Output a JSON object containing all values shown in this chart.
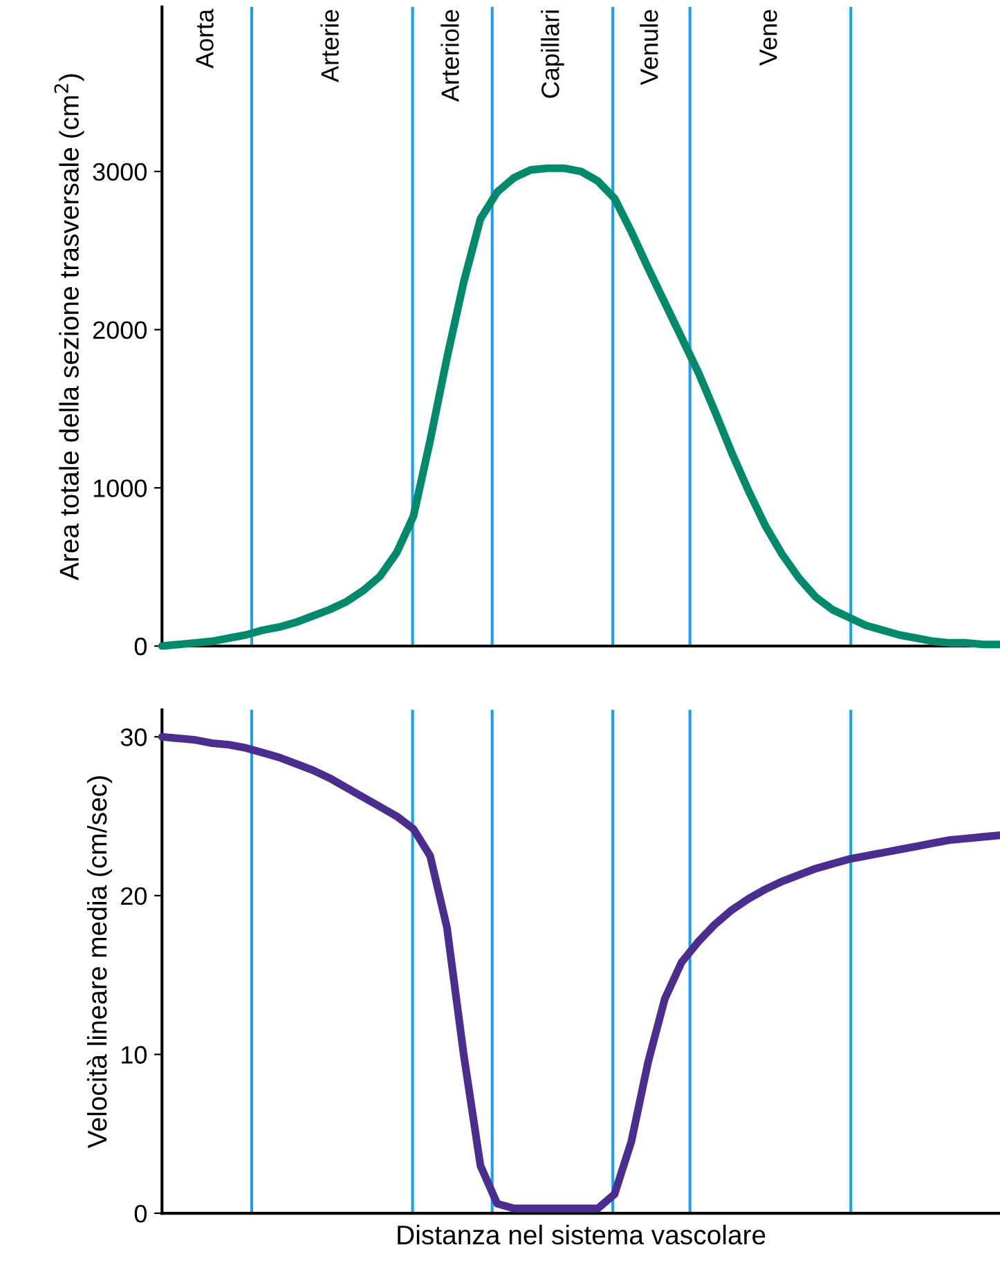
{
  "chart_data": [
    {
      "type": "line",
      "ylabel": "Area totale della sezione trasversale (cm$^{2}$)",
      "categories": [
        null,
        null,
        null,
        null,
        null,
        null,
        null,
        null,
        null,
        null,
        null,
        null,
        null,
        null,
        null,
        null,
        null,
        null,
        null,
        null,
        null,
        null,
        null,
        null,
        null,
        null,
        null,
        null,
        null,
        null,
        null,
        null,
        null,
        null,
        null,
        null,
        null,
        null,
        null,
        null,
        null,
        null,
        null,
        null,
        null,
        null,
        null,
        null,
        null,
        null,
        null
      ],
      "ylim": [
        0,
        4040
      ],
      "yticks": [
        0,
        1000,
        2000,
        3000
      ],
      "tick_labels": "y",
      "grid": "x",
      "legend": false,
      "marker": "none",
      "line_style": "solid",
      "series": [
        {
          "color": "#00896a",
          "values": [
            0,
            10,
            20,
            30,
            50,
            70,
            100,
            120,
            150,
            190,
            230,
            280,
            350,
            440,
            590,
            820,
            1300,
            1820,
            2300,
            2700,
            2870,
            2960,
            3010,
            3020,
            3020,
            3000,
            2940,
            2830,
            2620,
            2390,
            2170,
            1950,
            1730,
            1480,
            1220,
            980,
            760,
            580,
            430,
            310,
            230,
            180,
            130,
            100,
            70,
            50,
            30,
            20,
            20,
            10,
            10
          ]
        }
      ],
      "annotations": [
        "Aorta",
        "Arterie",
        "Arteriole",
        "Capillari",
        "Venule",
        "Vene"
      ]
    },
    {
      "type": "line",
      "xlabel": "Distanza nel sistema vascolare",
      "ylabel": "Velocità lineare media (cm/sec)",
      "categories": [
        null,
        null,
        null,
        null,
        null,
        null,
        null,
        null,
        null,
        null,
        null,
        null,
        null,
        null,
        null,
        null,
        null,
        null,
        null,
        null,
        null,
        null,
        null,
        null,
        null,
        null,
        null,
        null,
        null,
        null,
        null,
        null,
        null,
        null,
        null,
        null,
        null,
        null,
        null,
        null,
        null,
        null,
        null,
        null,
        null,
        null,
        null,
        null,
        null,
        null,
        null
      ],
      "ylim": [
        0,
        31.7
      ],
      "yticks": [
        0,
        10,
        20,
        30
      ],
      "tick_labels": "y",
      "grid": "x",
      "legend": false,
      "marker": "none",
      "line_style": "solid",
      "series": [
        {
          "color": "#4b2d8f",
          "values": [
            30,
            29.9,
            29.8,
            29.6,
            29.5,
            29.3,
            29.0,
            28.7,
            28.3,
            27.9,
            27.4,
            26.8,
            26.2,
            25.6,
            25.0,
            24.2,
            22.5,
            18,
            10,
            3,
            0.6,
            0.3,
            0.3,
            0.3,
            0.3,
            0.3,
            0.3,
            1.2,
            4.5,
            9.5,
            13.5,
            15.8,
            17.1,
            18.2,
            19.1,
            19.8,
            20.4,
            20.9,
            21.3,
            21.7,
            22.0,
            22.3,
            22.5,
            22.7,
            22.9,
            23.1,
            23.3,
            23.5,
            23.6,
            23.7,
            23.8
          ]
        }
      ]
    }
  ]
}
